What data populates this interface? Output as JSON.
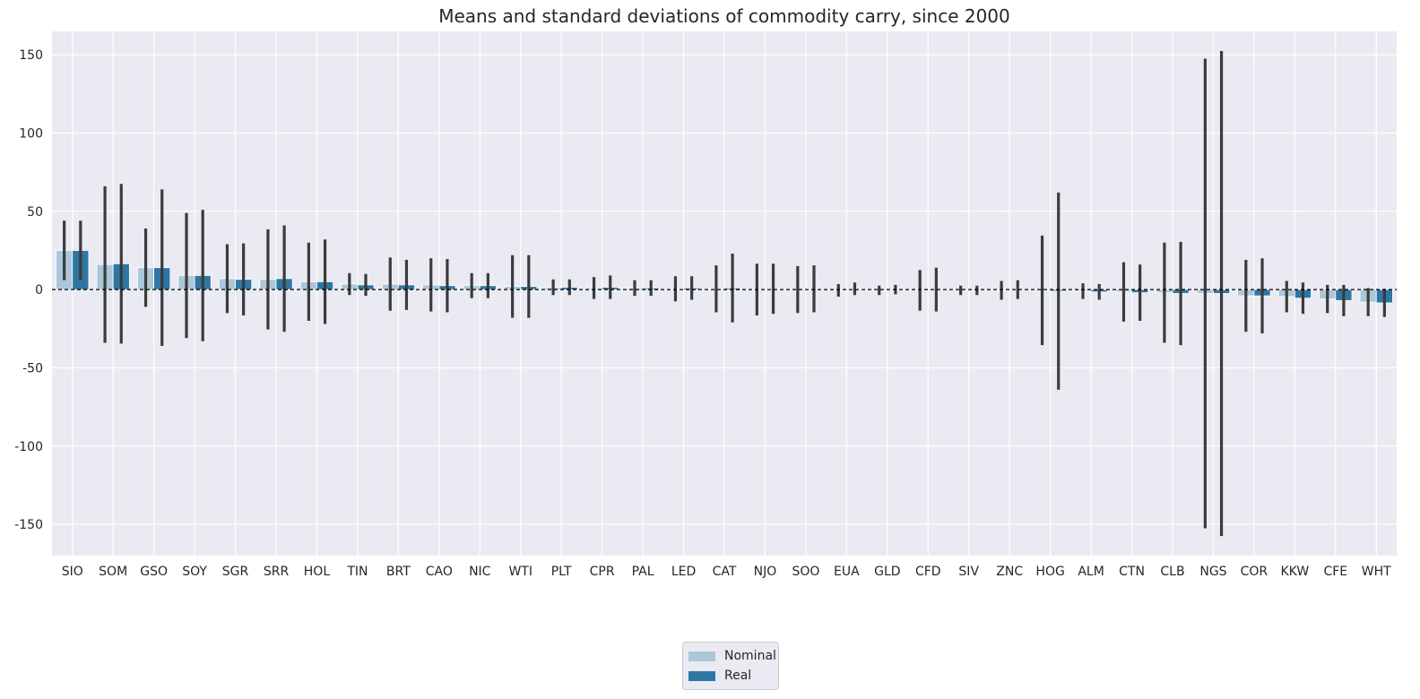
{
  "chart_data": {
    "type": "bar",
    "title": "Means and standard deviations of commodity carry, since 2000",
    "xlabel": "",
    "ylabel": "",
    "ylim": [
      -170,
      165
    ],
    "yticks": [
      -150,
      -100,
      -50,
      0,
      50,
      100,
      150
    ],
    "grid": true,
    "legend_position": "bottom-center",
    "reference_line": 0,
    "categories": [
      "SIO",
      "SOM",
      "GSO",
      "SOY",
      "SGR",
      "SRR",
      "HOL",
      "TIN",
      "BRT",
      "CAO",
      "NIC",
      "WTI",
      "PLT",
      "CPR",
      "PAL",
      "LED",
      "CAT",
      "NJO",
      "SOO",
      "EUA",
      "GLD",
      "CFD",
      "SIV",
      "ZNC",
      "HOG",
      "ALM",
      "CTN",
      "CLB",
      "NGS",
      "COR",
      "KKW",
      "CFE",
      "WHT"
    ],
    "series": [
      {
        "name": "Nominal",
        "color": "#abc7d9",
        "values": [
          25,
          16,
          14,
          9,
          7,
          6.5,
          5,
          3.5,
          3.5,
          3,
          2.5,
          2,
          1.5,
          1,
          1,
          0.5,
          0.5,
          0,
          0,
          -0.5,
          -0.5,
          -0.5,
          -0.5,
          -0.5,
          -0.5,
          -1,
          -1.5,
          -2,
          -2.5,
          -4,
          -4.5,
          -6,
          -8
        ],
        "std": [
          19,
          50,
          25,
          40,
          22,
          32,
          25,
          7,
          17,
          17,
          8,
          20,
          5,
          7,
          5,
          8,
          15,
          16.5,
          15,
          4,
          3,
          13,
          3,
          6,
          35,
          5,
          19,
          32,
          150,
          23,
          10,
          9,
          9
        ]
      },
      {
        "name": "Real",
        "color": "#2e77a4",
        "values": [
          25,
          16.5,
          14,
          9,
          6.5,
          7,
          5,
          3,
          3,
          2.5,
          2.5,
          2,
          1.5,
          1.5,
          1,
          1,
          1,
          0.5,
          0.5,
          0.5,
          0,
          0,
          -0.5,
          0,
          -1,
          -1.5,
          -2,
          -2.5,
          -2.5,
          -4,
          -5.5,
          -7,
          -8.5
        ],
        "std": [
          19,
          51,
          50,
          42,
          23,
          34,
          27,
          7,
          16,
          17,
          8,
          20,
          5,
          7.5,
          5,
          7.5,
          22,
          16,
          15,
          4,
          3,
          14,
          3,
          6,
          63,
          5,
          18,
          33,
          155,
          24,
          10,
          10,
          9
        ]
      }
    ]
  }
}
